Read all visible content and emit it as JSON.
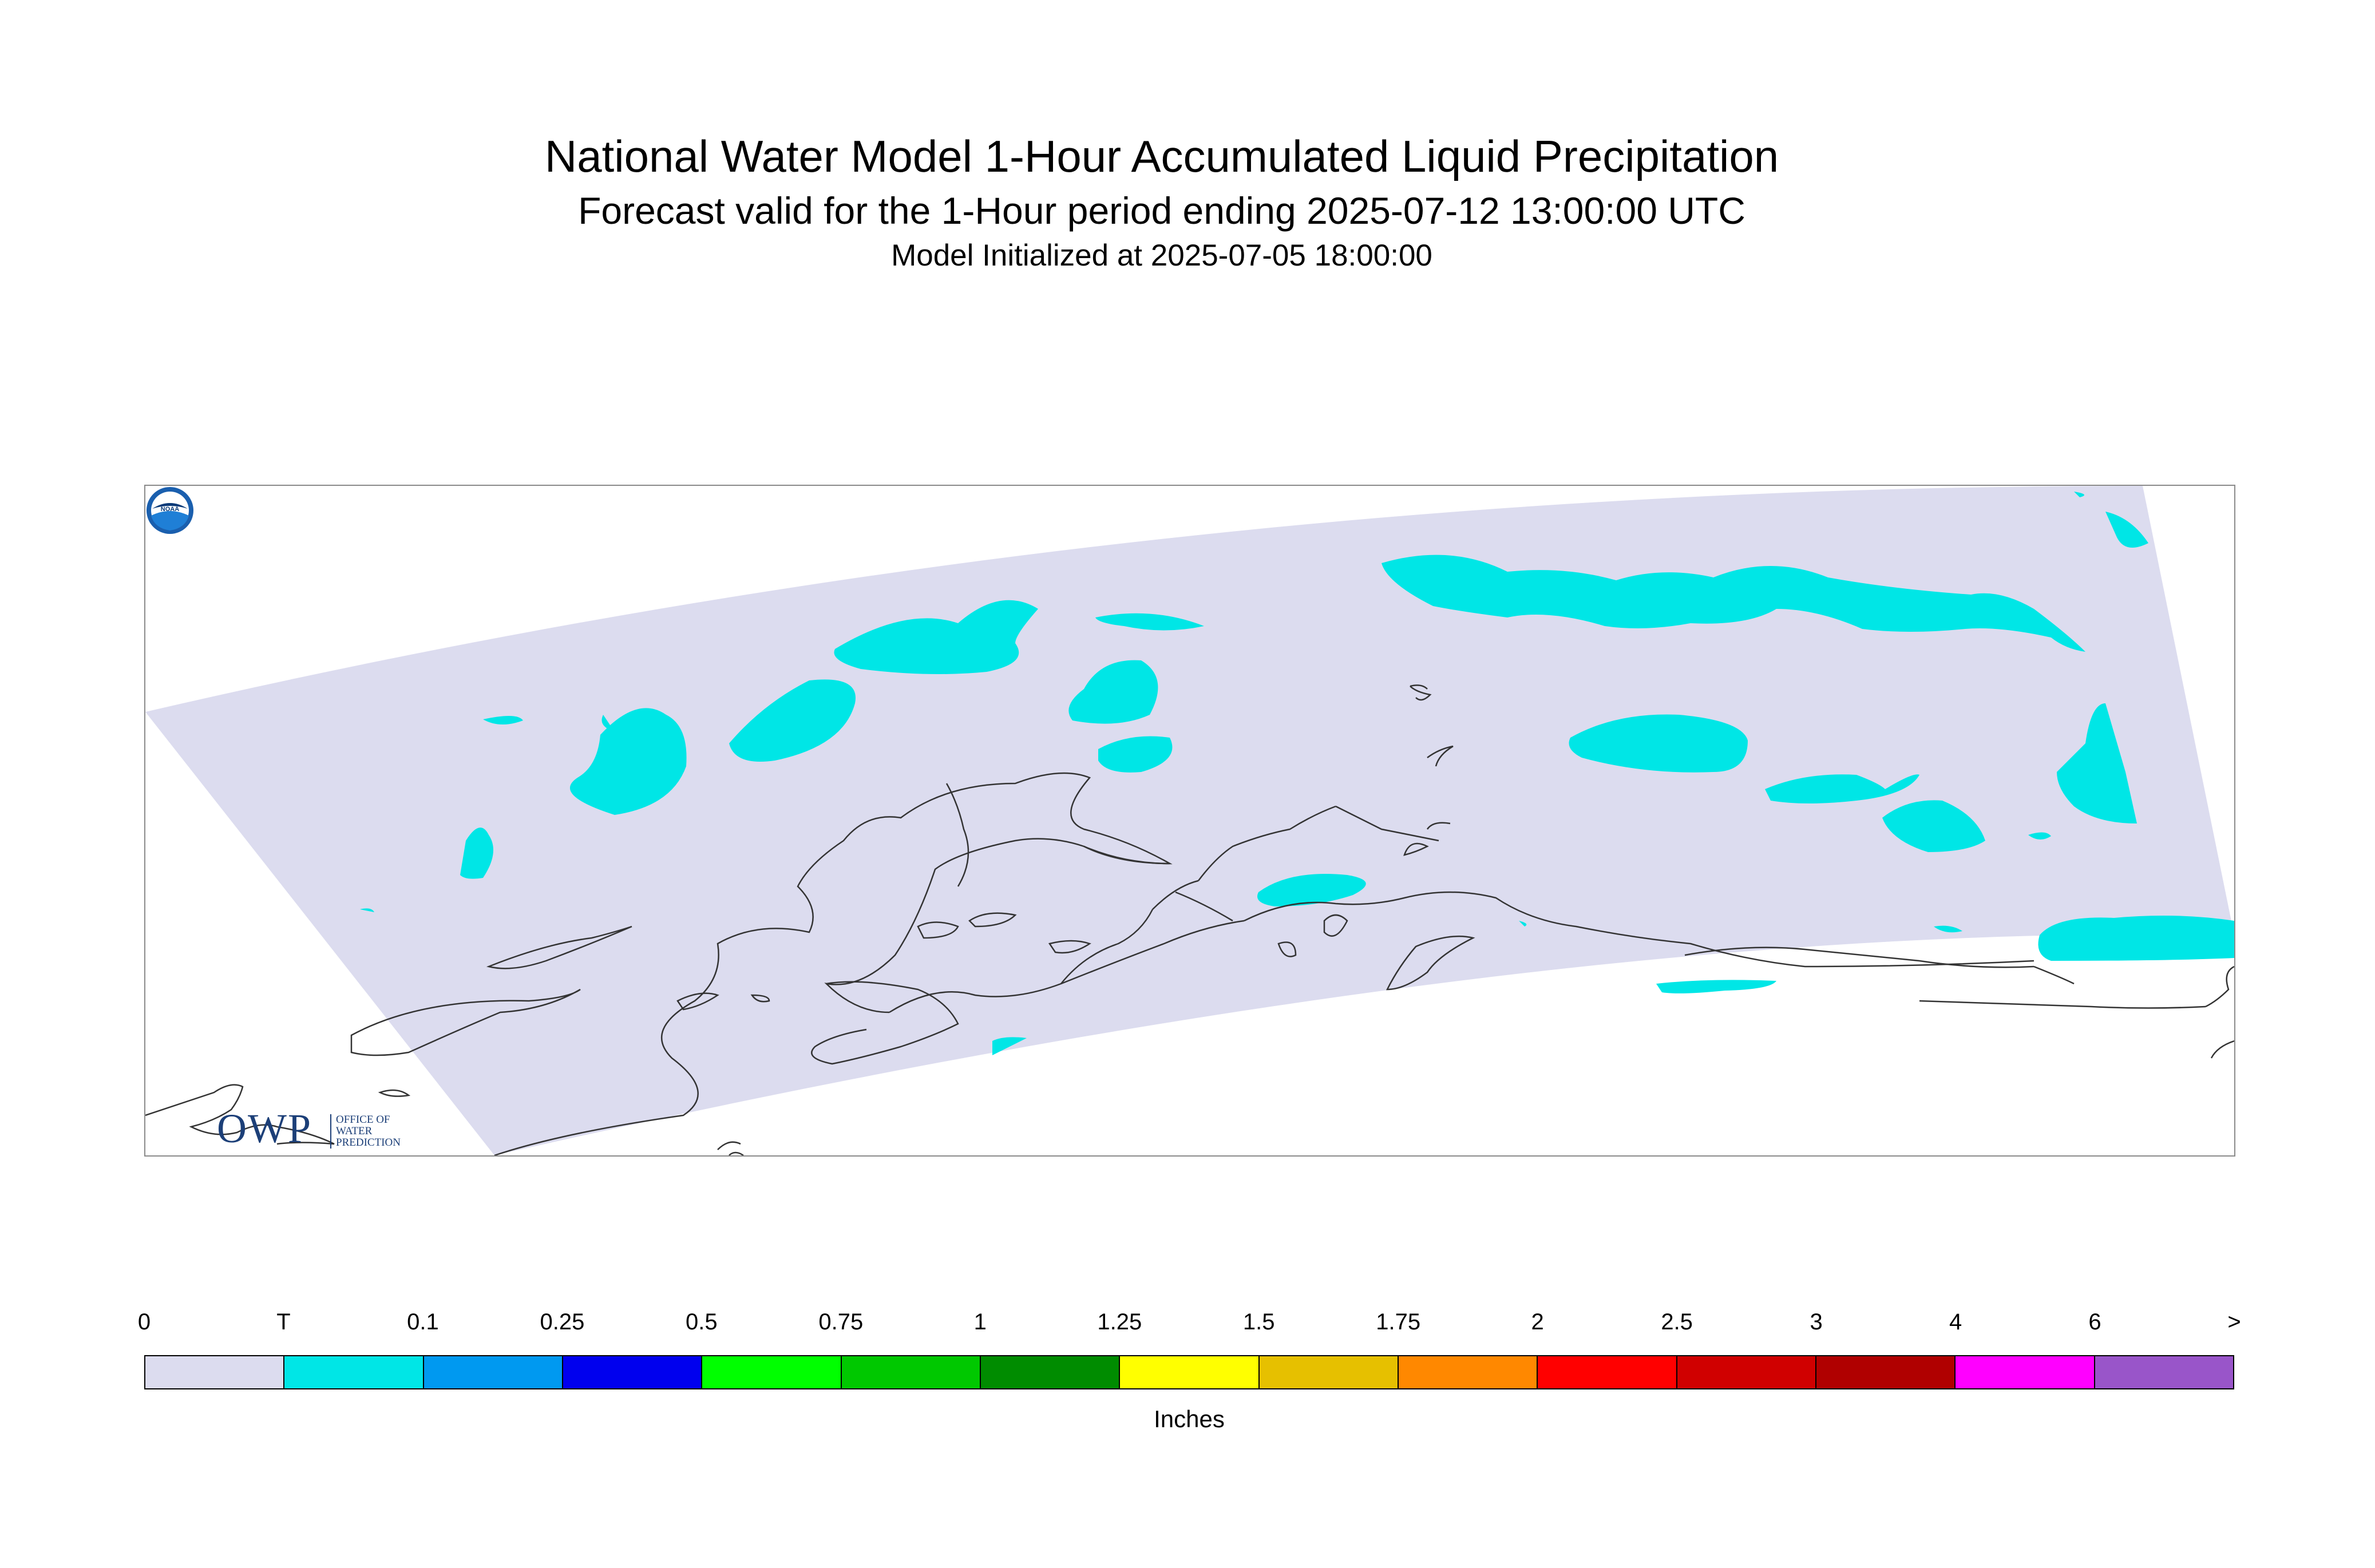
{
  "title": "National Water Model 1-Hour Accumulated Liquid Precipitation",
  "subtitle": "Forecast valid for the 1-Hour period ending 2025-07-12 13:00:00 UTC",
  "init": "Model Initialized at 2025-07-05 18:00:00",
  "logo_owp": {
    "mark": "OWP",
    "text_lines": [
      "OFFICE OF",
      "WATER",
      "PREDICTION"
    ]
  },
  "logo_noaa": {
    "text": "NOAA"
  },
  "legend": {
    "units": "Inches",
    "tick_labels": [
      "0",
      "T",
      "0.1",
      "0.25",
      "0.5",
      "0.75",
      "1",
      "1.25",
      "1.5",
      "1.75",
      "2",
      "2.5",
      "3",
      "4",
      "6",
      ">"
    ],
    "colors": [
      "#dcdcef",
      "#00e6e6",
      "#0099f0",
      "#0000ee",
      "#00ff00",
      "#00c800",
      "#008c00",
      "#ffff00",
      "#e6c000",
      "#ff8800",
      "#ff0000",
      "#d00000",
      "#b00000",
      "#ff00ff",
      "#9955c9"
    ]
  },
  "map_colors": {
    "domain": "#dcdcef",
    "precip_trace": "#00e6e6",
    "coastline": "#333333"
  }
}
